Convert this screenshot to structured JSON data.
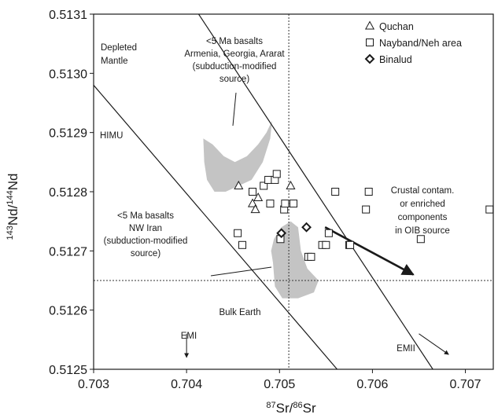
{
  "chart_data": {
    "type": "scatter",
    "xlabel": "87Sr/86Sr",
    "ylabel": "143Nd/144Nd",
    "xlim": [
      0.703,
      0.7073
    ],
    "ylim": [
      0.5125,
      0.5131
    ],
    "xticks": [
      "0.703",
      "0.704",
      "0.705",
      "0.706",
      "0.707"
    ],
    "yticks": [
      "0.5125",
      "0.5126",
      "0.5127",
      "0.5128",
      "0.5129",
      "0.5130",
      "0.5131"
    ],
    "legend_position": "top-right",
    "series": [
      {
        "name": "Quchan",
        "marker": "triangle",
        "points": [
          [
            0.70456,
            0.51281
          ],
          [
            0.70471,
            0.51278
          ],
          [
            0.70474,
            0.51277
          ],
          [
            0.70477,
            0.51279
          ],
          [
            0.70512,
            0.51281
          ]
        ]
      },
      {
        "name": "Nayband/Neh area",
        "marker": "square",
        "points": [
          [
            0.70471,
            0.5128
          ],
          [
            0.70483,
            0.51281
          ],
          [
            0.70488,
            0.51282
          ],
          [
            0.70495,
            0.51282
          ],
          [
            0.70497,
            0.51283
          ],
          [
            0.7049,
            0.51278
          ],
          [
            0.70505,
            0.51277
          ],
          [
            0.70506,
            0.51278
          ],
          [
            0.70515,
            0.51278
          ],
          [
            0.7056,
            0.5128
          ],
          [
            0.70596,
            0.5128
          ],
          [
            0.70593,
            0.51277
          ],
          [
            0.70726,
            0.51277
          ],
          [
            0.70455,
            0.51273
          ],
          [
            0.7046,
            0.51271
          ],
          [
            0.70501,
            0.51272
          ],
          [
            0.70553,
            0.51273
          ],
          [
            0.70531,
            0.51269
          ],
          [
            0.70534,
            0.51269
          ],
          [
            0.70546,
            0.51271
          ],
          [
            0.7055,
            0.51271
          ],
          [
            0.70575,
            0.51271
          ],
          [
            0.70576,
            0.51271
          ],
          [
            0.70652,
            0.51272
          ]
        ]
      },
      {
        "name": "Binalud",
        "marker": "diamond",
        "points": [
          [
            0.70502,
            0.51273
          ],
          [
            0.70529,
            0.51274
          ]
        ]
      }
    ],
    "reference_lines": {
      "bulk_earth_x": 0.7051,
      "bulk_earth_y": 0.51265
    },
    "mantle_lines": [
      [
        [
          0.70413,
          0.5131
        ],
        [
          0.70665,
          0.5125
        ]
      ],
      [
        [
          0.703,
          0.51298
        ],
        [
          0.70562,
          0.5125
        ]
      ]
    ],
    "fields": {
      "armenia": [
        [
          0.70418,
          0.51289
        ],
        [
          0.70428,
          0.51288
        ],
        [
          0.7044,
          0.51286
        ],
        [
          0.70452,
          0.51285
        ],
        [
          0.70465,
          0.51286
        ],
        [
          0.70477,
          0.51288
        ],
        [
          0.70486,
          0.5129
        ],
        [
          0.70492,
          0.51292
        ],
        [
          0.7049,
          0.51289
        ],
        [
          0.70482,
          0.51285
        ],
        [
          0.7047,
          0.51282
        ],
        [
          0.70456,
          0.51281
        ],
        [
          0.70442,
          0.5128
        ],
        [
          0.7043,
          0.5128
        ],
        [
          0.70422,
          0.51282
        ],
        [
          0.70419,
          0.51285
        ]
      ],
      "nw_iran": [
        [
          0.70493,
          0.51268
        ],
        [
          0.70491,
          0.5127
        ],
        [
          0.70494,
          0.51272
        ],
        [
          0.70502,
          0.51274
        ],
        [
          0.70512,
          0.51275
        ],
        [
          0.7052,
          0.51274
        ],
        [
          0.70523,
          0.5127
        ],
        [
          0.7053,
          0.51267
        ],
        [
          0.70542,
          0.51265
        ],
        [
          0.70537,
          0.51263
        ],
        [
          0.7052,
          0.51262
        ],
        [
          0.70503,
          0.51262
        ],
        [
          0.70495,
          0.51264
        ]
      ]
    },
    "arrows": {
      "crustal": [
        [
          0.70549,
          0.51274
        ],
        [
          0.70644,
          0.51266
        ]
      ],
      "emi": [
        [
          0.704,
          0.51256
        ],
        [
          0.704,
          0.51252
        ]
      ],
      "emii": [
        [
          0.7065,
          0.51256
        ],
        [
          0.70682,
          0.512525
        ]
      ]
    },
    "annotations": {
      "depleted_mantle": [
        "Depleted",
        "Mantle"
      ],
      "armenia_label": [
        "<5 Ma basalts",
        "Armenia, Georgia, Ararat",
        "(subduction-modified",
        "source)"
      ],
      "himu": "HIMU",
      "crustal_label": [
        "Crustal contam.",
        "or enriched",
        "components",
        "in OIB source"
      ],
      "nw_iran_label": [
        "<5 Ma basalts",
        "NW Iran",
        "(subduction-modified",
        "source)"
      ],
      "bulk_earth": "Bulk Earth",
      "emi": "EMI",
      "emii": "EMII"
    }
  }
}
